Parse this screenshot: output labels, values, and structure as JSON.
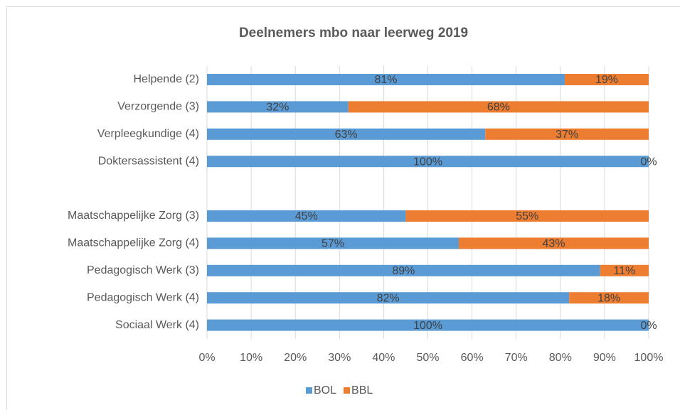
{
  "chart_data": {
    "type": "stacked_barh",
    "title": "Deelnemers mbo naar leerweg 2019",
    "categories": [
      "Helpende (2)",
      "Verzorgende (3)",
      "Verpleegkundige (4)",
      "Doktersassistent (4)",
      null,
      "Maatschappelijke Zorg (3)",
      "Maatschappelijke Zorg (4)",
      "Pedagogisch Werk (3)",
      "Pedagogisch Werk (4)",
      "Sociaal Werk (4)"
    ],
    "series": [
      {
        "name": "BOL",
        "color": "#5b9bd5",
        "values": [
          81,
          32,
          63,
          100,
          null,
          45,
          57,
          89,
          82,
          100
        ],
        "value_labels": [
          "81%",
          "32%",
          "63%",
          "100%",
          null,
          "45%",
          "57%",
          "89%",
          "82%",
          "100%"
        ]
      },
      {
        "name": "BBL",
        "color": "#ed7d31",
        "values": [
          19,
          68,
          37,
          0,
          null,
          55,
          43,
          11,
          18,
          0
        ],
        "value_labels": [
          "19%",
          "68%",
          "37%",
          "0%",
          null,
          "55%",
          "43%",
          "11%",
          "18%",
          "0%"
        ]
      }
    ],
    "xlim": [
      0,
      100
    ],
    "xticks": [
      {
        "value": 0,
        "label": "0%"
      },
      {
        "value": 10,
        "label": "10%"
      },
      {
        "value": 20,
        "label": "20%"
      },
      {
        "value": 30,
        "label": "30%"
      },
      {
        "value": 40,
        "label": "40%"
      },
      {
        "value": 50,
        "label": "50%"
      },
      {
        "value": 60,
        "label": "60%"
      },
      {
        "value": 70,
        "label": "70%"
      },
      {
        "value": 80,
        "label": "80%"
      },
      {
        "value": 90,
        "label": "90%"
      },
      {
        "value": 100,
        "label": "100%"
      }
    ],
    "grid": true,
    "legend": "bottom"
  }
}
